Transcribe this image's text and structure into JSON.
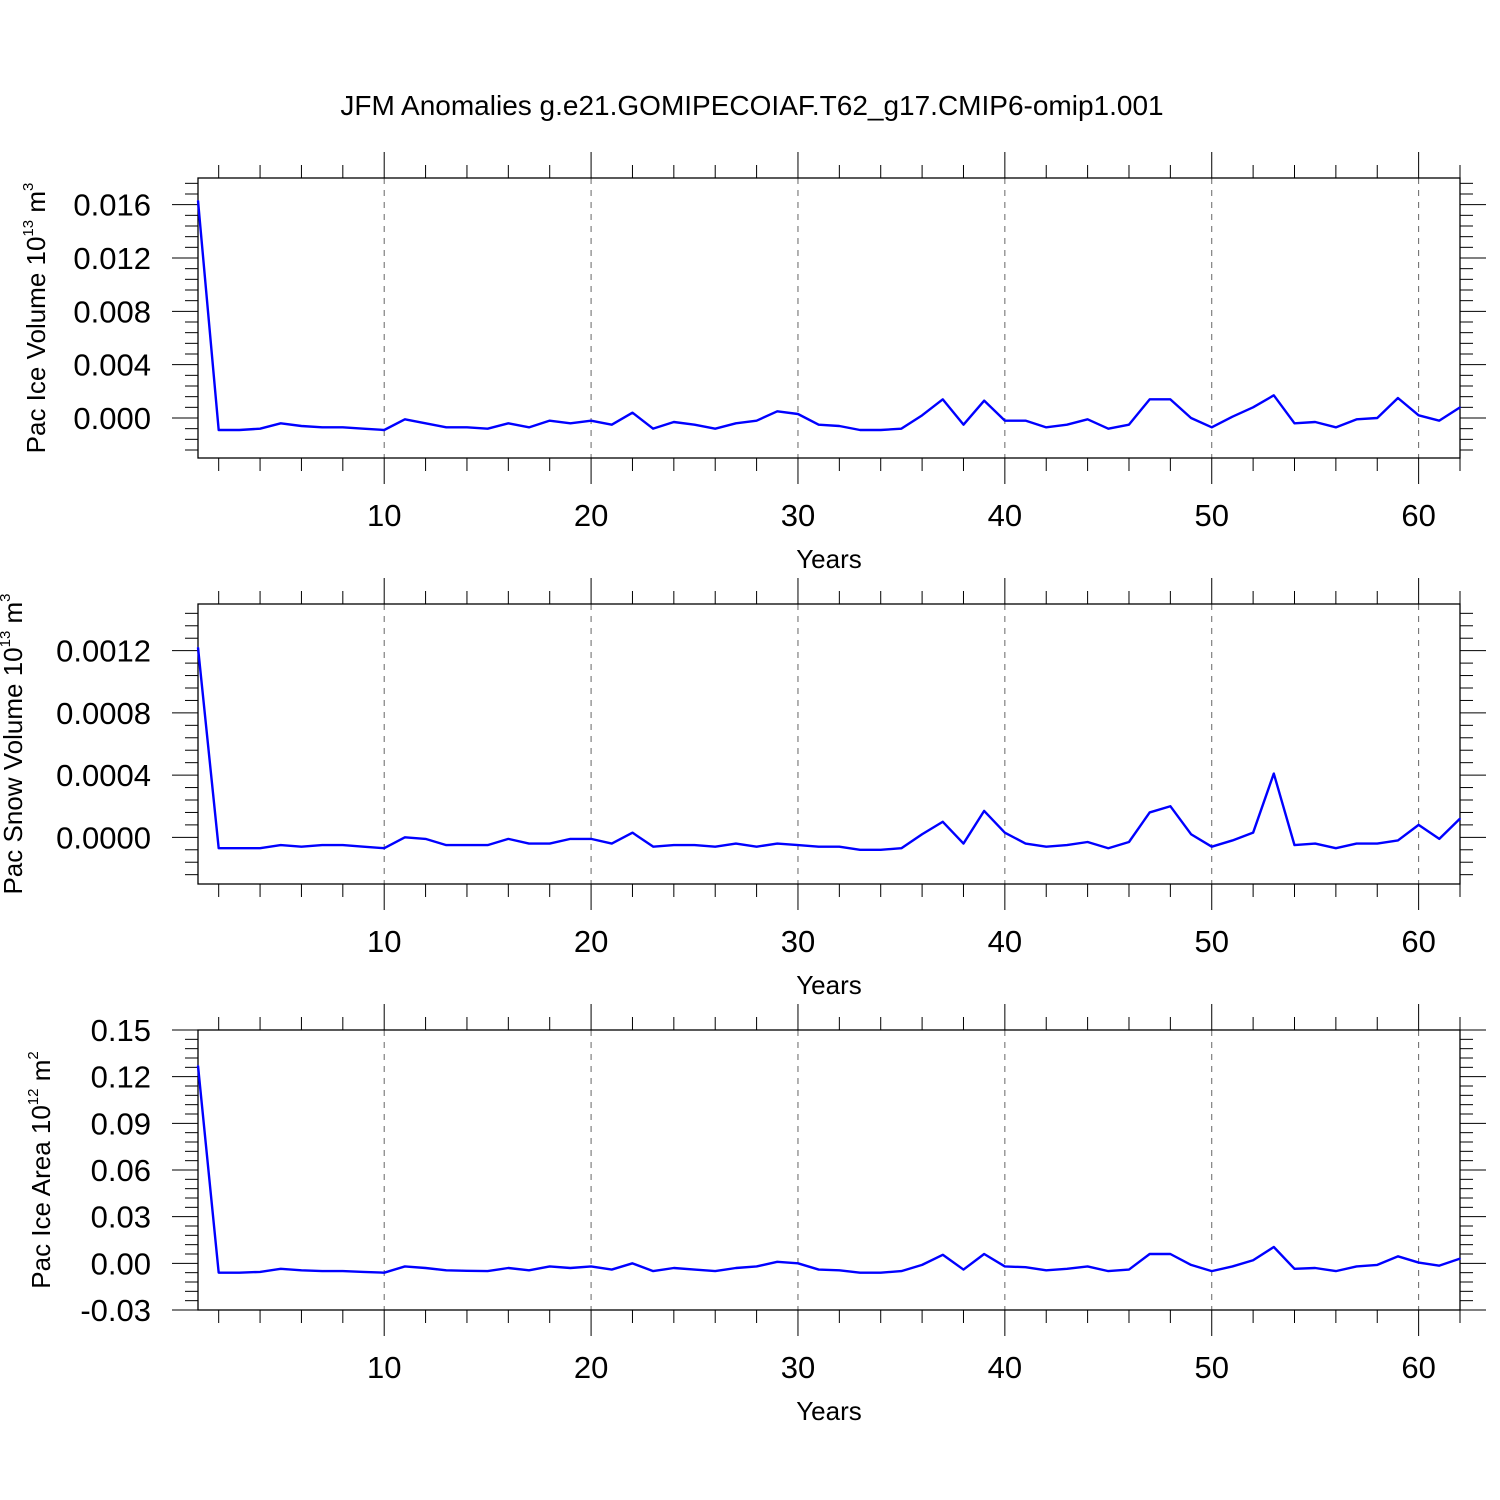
{
  "title": "JFM Anomalies g.e21.GOMIPECOIAF.T62_g17.CMIP6-omip1.001",
  "colors": {
    "line": "#0000ff",
    "frame": "#000000",
    "grid": "#000000"
  },
  "chart_data": [
    {
      "type": "line",
      "xlabel": "Years",
      "ylabel": {
        "prefix": "Pac Ice Volume 10",
        "exp": "13",
        "mid": " m",
        "unit_exp": "3"
      },
      "xlim": [
        1,
        62
      ],
      "ylim": [
        -0.003,
        0.018
      ],
      "xticks": [
        10,
        20,
        30,
        40,
        50,
        60
      ],
      "xtick_labels": [
        "10",
        "20",
        "30",
        "40",
        "50",
        "60"
      ],
      "yticks": [
        0.0,
        0.004,
        0.008,
        0.012,
        0.016
      ],
      "ytick_labels": [
        "0.000",
        "0.004",
        "0.008",
        "0.012",
        "0.016"
      ],
      "grid": "vertical dashed at major x ticks",
      "series": [
        {
          "x": [
            1,
            2,
            3,
            4,
            5,
            6,
            7,
            8,
            9,
            10,
            11,
            12,
            13,
            14,
            15,
            16,
            17,
            18,
            19,
            20,
            21,
            22,
            23,
            24,
            25,
            26,
            27,
            28,
            29,
            30,
            31,
            32,
            33,
            34,
            35,
            36,
            37,
            38,
            39,
            40,
            41,
            42,
            43,
            44,
            45,
            46,
            47,
            48,
            49,
            50,
            51,
            52,
            53,
            54,
            55,
            56,
            57,
            58,
            59,
            60,
            61,
            62
          ],
          "values": [
            0.0163,
            -0.0009,
            -0.0009,
            -0.0008,
            -0.0004,
            -0.0006,
            -0.0007,
            -0.0007,
            -0.0008,
            -0.0009,
            -0.0001,
            -0.0004,
            -0.0007,
            -0.0007,
            -0.0008,
            -0.0004,
            -0.0007,
            -0.0002,
            -0.0004,
            -0.0002,
            -0.0005,
            0.0004,
            -0.0008,
            -0.0003,
            -0.0005,
            -0.0008,
            -0.0004,
            -0.0002,
            0.0005,
            0.0003,
            -0.0005,
            -0.0006,
            -0.0009,
            -0.0009,
            -0.0008,
            0.0002,
            0.0014,
            -0.0005,
            0.0013,
            -0.0002,
            -0.0002,
            -0.0007,
            -0.0005,
            -0.0001,
            -0.0008,
            -0.0005,
            0.0014,
            0.0014,
            0.0,
            -0.0007,
            0.0001,
            0.0008,
            0.0017,
            -0.0004,
            -0.0003,
            -0.0007,
            -0.0001,
            0.0,
            0.0015,
            0.0002,
            -0.0002,
            0.0008
          ]
        }
      ]
    },
    {
      "type": "line",
      "xlabel": "Years",
      "ylabel": {
        "prefix": "Pac Snow Volume 10",
        "exp": "13",
        "mid": " m",
        "unit_exp": "3"
      },
      "xlim": [
        1,
        62
      ],
      "ylim": [
        -0.0003,
        0.0015
      ],
      "xticks": [
        10,
        20,
        30,
        40,
        50,
        60
      ],
      "xtick_labels": [
        "10",
        "20",
        "30",
        "40",
        "50",
        "60"
      ],
      "yticks": [
        0.0,
        0.0004,
        0.0008,
        0.0012
      ],
      "ytick_labels": [
        "0.0000",
        "0.0004",
        "0.0008",
        "0.0012"
      ],
      "grid": "vertical dashed at major x ticks",
      "series": [
        {
          "x": [
            1,
            2,
            3,
            4,
            5,
            6,
            7,
            8,
            9,
            10,
            11,
            12,
            13,
            14,
            15,
            16,
            17,
            18,
            19,
            20,
            21,
            22,
            23,
            24,
            25,
            26,
            27,
            28,
            29,
            30,
            31,
            32,
            33,
            34,
            35,
            36,
            37,
            38,
            39,
            40,
            41,
            42,
            43,
            44,
            45,
            46,
            47,
            48,
            49,
            50,
            51,
            52,
            53,
            54,
            55,
            56,
            57,
            58,
            59,
            60,
            61,
            62
          ],
          "values": [
            0.00122,
            -7e-05,
            -7e-05,
            -7e-05,
            -5e-05,
            -6e-05,
            -5e-05,
            -5e-05,
            -6e-05,
            -7e-05,
            0.0,
            -1e-05,
            -5e-05,
            -5e-05,
            -5e-05,
            -1e-05,
            -4e-05,
            -4e-05,
            -1e-05,
            -1e-05,
            -4e-05,
            3e-05,
            -6e-05,
            -5e-05,
            -5e-05,
            -6e-05,
            -4e-05,
            -6e-05,
            -4e-05,
            -5e-05,
            -6e-05,
            -6e-05,
            -8e-05,
            -8e-05,
            -7e-05,
            2e-05,
            0.0001,
            -4e-05,
            0.00017,
            3e-05,
            -4e-05,
            -6e-05,
            -5e-05,
            -3e-05,
            -7e-05,
            -3e-05,
            0.00016,
            0.0002,
            2e-05,
            -6e-05,
            -2e-05,
            3e-05,
            0.00041,
            -5e-05,
            -4e-05,
            -7e-05,
            -4e-05,
            -4e-05,
            -2e-05,
            8e-05,
            -1e-05,
            0.00012
          ]
        }
      ]
    },
    {
      "type": "line",
      "xlabel": "Years",
      "ylabel": {
        "prefix": "Pac Ice Area 10",
        "exp": "12",
        "mid": " m",
        "unit_exp": "2"
      },
      "xlim": [
        1,
        62
      ],
      "ylim": [
        -0.03,
        0.15
      ],
      "xticks": [
        10,
        20,
        30,
        40,
        50,
        60
      ],
      "xtick_labels": [
        "10",
        "20",
        "30",
        "40",
        "50",
        "60"
      ],
      "yticks": [
        -0.03,
        0.0,
        0.03,
        0.06,
        0.09,
        0.12,
        0.15
      ],
      "ytick_labels": [
        "-0.03",
        "0.00",
        "0.03",
        "0.06",
        "0.09",
        "0.12",
        "0.15"
      ],
      "grid": "vertical dashed at major x ticks",
      "series": [
        {
          "x": [
            1,
            2,
            3,
            4,
            5,
            6,
            7,
            8,
            9,
            10,
            11,
            12,
            13,
            14,
            15,
            16,
            17,
            18,
            19,
            20,
            21,
            22,
            23,
            24,
            25,
            26,
            27,
            28,
            29,
            30,
            31,
            32,
            33,
            34,
            35,
            36,
            37,
            38,
            39,
            40,
            41,
            42,
            43,
            44,
            45,
            46,
            47,
            48,
            49,
            50,
            51,
            52,
            53,
            54,
            55,
            56,
            57,
            58,
            59,
            60,
            61,
            62
          ],
          "values": [
            0.127,
            -0.006,
            -0.006,
            -0.0055,
            -0.0035,
            -0.0045,
            -0.005,
            -0.005,
            -0.0055,
            -0.006,
            -0.002,
            -0.003,
            -0.0045,
            -0.0048,
            -0.005,
            -0.003,
            -0.0045,
            -0.002,
            -0.003,
            -0.002,
            -0.004,
            0.0,
            -0.005,
            -0.003,
            -0.004,
            -0.005,
            -0.003,
            -0.002,
            0.001,
            0.0,
            -0.004,
            -0.0045,
            -0.006,
            -0.006,
            -0.005,
            -0.001,
            0.0055,
            -0.004,
            0.006,
            -0.002,
            -0.0025,
            -0.0045,
            -0.0035,
            -0.002,
            -0.005,
            -0.004,
            0.006,
            0.006,
            -0.001,
            -0.005,
            -0.002,
            0.002,
            0.0105,
            -0.0035,
            -0.003,
            -0.005,
            -0.002,
            -0.001,
            0.0045,
            0.0005,
            -0.0015,
            0.003
          ]
        }
      ]
    }
  ]
}
